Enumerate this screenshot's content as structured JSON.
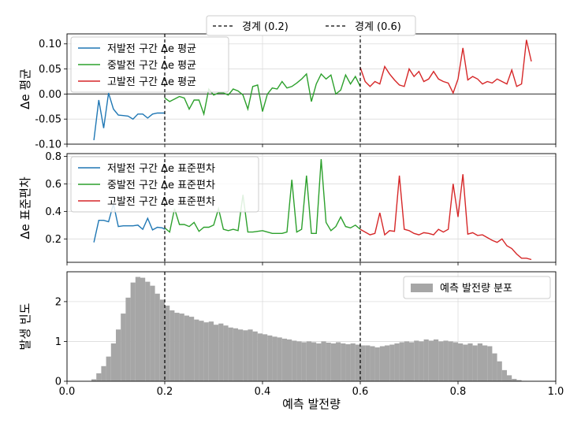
{
  "figure_legend": [
    {
      "label": "경계 (0.2)",
      "color": "#000000",
      "dash": true
    },
    {
      "label": "경계 (0.6)",
      "color": "#000000",
      "dash": true
    }
  ],
  "colors": {
    "low": "#1f77b4",
    "mid": "#2ca02c",
    "high": "#d62728",
    "hist": "#a6a6a6",
    "grid": "#dcdcdc"
  },
  "chart_data": [
    {
      "type": "line",
      "ylabel": "Δe 평균",
      "xlim": [
        0.0,
        1.0
      ],
      "ylim": [
        -0.1,
        0.12
      ],
      "yticks": [
        "0.10",
        "0.05",
        "0.00",
        "-0.05",
        "-0.10"
      ],
      "ytick_values": [
        0.1,
        0.05,
        0.0,
        -0.05,
        -0.1
      ],
      "hline": 0.0,
      "vlines": [
        0.2,
        0.6
      ],
      "legend_position": "upper-left",
      "series": [
        {
          "name": "저발전 구간 Δe 평균",
          "color_key": "low",
          "x": [
            0.055,
            0.065,
            0.075,
            0.085,
            0.095,
            0.105,
            0.115,
            0.125,
            0.135,
            0.145,
            0.155,
            0.165,
            0.175,
            0.185,
            0.195,
            0.2
          ],
          "y": [
            -0.092,
            -0.012,
            -0.068,
            0.002,
            -0.03,
            -0.042,
            -0.043,
            -0.044,
            -0.05,
            -0.04,
            -0.04,
            -0.048,
            -0.04,
            -0.038,
            -0.038,
            -0.038
          ]
        },
        {
          "name": "중발전 구간 Δe 평균",
          "color_key": "mid",
          "x": [
            0.2,
            0.21,
            0.22,
            0.23,
            0.24,
            0.25,
            0.26,
            0.27,
            0.28,
            0.29,
            0.3,
            0.31,
            0.32,
            0.33,
            0.34,
            0.35,
            0.36,
            0.37,
            0.38,
            0.39,
            0.4,
            0.41,
            0.42,
            0.43,
            0.44,
            0.45,
            0.46,
            0.47,
            0.48,
            0.49,
            0.5,
            0.51,
            0.52,
            0.53,
            0.54,
            0.55,
            0.56,
            0.57,
            0.58,
            0.59,
            0.6
          ],
          "y": [
            -0.008,
            -0.015,
            -0.01,
            -0.005,
            -0.008,
            -0.03,
            -0.012,
            -0.012,
            -0.04,
            0.01,
            -0.002,
            0.002,
            0.002,
            -0.002,
            0.01,
            0.006,
            -0.002,
            -0.03,
            0.015,
            0.018,
            -0.035,
            0.0,
            0.012,
            0.01,
            0.025,
            0.012,
            0.015,
            0.022,
            0.03,
            0.04,
            -0.015,
            0.02,
            0.04,
            0.03,
            0.038,
            0.0,
            0.008,
            0.038,
            0.02,
            0.035,
            0.015
          ]
        },
        {
          "name": "고발전 구간 Δe 평균",
          "color_key": "high",
          "x": [
            0.6,
            0.61,
            0.62,
            0.63,
            0.64,
            0.65,
            0.66,
            0.67,
            0.68,
            0.69,
            0.7,
            0.71,
            0.72,
            0.73,
            0.74,
            0.75,
            0.76,
            0.77,
            0.78,
            0.79,
            0.8,
            0.81,
            0.82,
            0.83,
            0.84,
            0.85,
            0.86,
            0.87,
            0.88,
            0.89,
            0.9,
            0.91,
            0.92,
            0.93,
            0.94,
            0.95
          ],
          "y": [
            0.053,
            0.025,
            0.015,
            0.025,
            0.02,
            0.055,
            0.04,
            0.028,
            0.018,
            0.015,
            0.05,
            0.035,
            0.045,
            0.025,
            0.03,
            0.045,
            0.03,
            0.025,
            0.022,
            0.002,
            0.03,
            0.092,
            0.028,
            0.035,
            0.03,
            0.02,
            0.025,
            0.022,
            0.03,
            0.025,
            0.02,
            0.048,
            0.015,
            0.02,
            0.108,
            0.065
          ]
        }
      ]
    },
    {
      "type": "line",
      "ylabel": "Δe 표준편차",
      "xlim": [
        0.0,
        1.0
      ],
      "ylim": [
        0.03,
        0.82
      ],
      "yticks": [
        "0.8",
        "0.6",
        "0.4",
        "0.2"
      ],
      "ytick_values": [
        0.8,
        0.6,
        0.4,
        0.2
      ],
      "vlines": [
        0.2,
        0.6
      ],
      "legend_position": "upper-left",
      "series": [
        {
          "name": "저발전 구간 Δe 표준편차",
          "color_key": "low",
          "x": [
            0.055,
            0.065,
            0.075,
            0.085,
            0.095,
            0.105,
            0.115,
            0.125,
            0.135,
            0.145,
            0.155,
            0.165,
            0.175,
            0.185,
            0.195,
            0.2
          ],
          "y": [
            0.175,
            0.335,
            0.335,
            0.325,
            0.455,
            0.29,
            0.295,
            0.295,
            0.295,
            0.3,
            0.27,
            0.35,
            0.265,
            0.285,
            0.28,
            0.27
          ]
        },
        {
          "name": "중발전 구간 Δe 표준편차",
          "color_key": "mid",
          "x": [
            0.2,
            0.21,
            0.22,
            0.23,
            0.24,
            0.25,
            0.26,
            0.27,
            0.28,
            0.29,
            0.3,
            0.31,
            0.32,
            0.33,
            0.34,
            0.35,
            0.36,
            0.37,
            0.38,
            0.39,
            0.4,
            0.41,
            0.42,
            0.43,
            0.44,
            0.45,
            0.46,
            0.47,
            0.48,
            0.49,
            0.5,
            0.51,
            0.52,
            0.53,
            0.54,
            0.55,
            0.56,
            0.57,
            0.58,
            0.59,
            0.6
          ],
          "y": [
            0.28,
            0.25,
            0.42,
            0.305,
            0.305,
            0.29,
            0.32,
            0.255,
            0.285,
            0.285,
            0.3,
            0.42,
            0.27,
            0.26,
            0.27,
            0.26,
            0.52,
            0.25,
            0.25,
            0.255,
            0.26,
            0.25,
            0.24,
            0.24,
            0.24,
            0.25,
            0.63,
            0.25,
            0.27,
            0.66,
            0.24,
            0.24,
            0.78,
            0.32,
            0.26,
            0.29,
            0.36,
            0.29,
            0.28,
            0.3,
            0.27
          ]
        },
        {
          "name": "고발전 구간 Δe 표준편차",
          "color_key": "high",
          "x": [
            0.6,
            0.61,
            0.62,
            0.63,
            0.64,
            0.65,
            0.66,
            0.67,
            0.68,
            0.69,
            0.7,
            0.71,
            0.72,
            0.73,
            0.74,
            0.75,
            0.76,
            0.77,
            0.78,
            0.79,
            0.8,
            0.81,
            0.82,
            0.83,
            0.84,
            0.85,
            0.86,
            0.87,
            0.88,
            0.89,
            0.9,
            0.91,
            0.92,
            0.93,
            0.94,
            0.95
          ],
          "y": [
            0.27,
            0.25,
            0.23,
            0.24,
            0.39,
            0.23,
            0.26,
            0.255,
            0.66,
            0.27,
            0.26,
            0.24,
            0.23,
            0.245,
            0.24,
            0.23,
            0.27,
            0.25,
            0.27,
            0.6,
            0.36,
            0.67,
            0.235,
            0.245,
            0.225,
            0.23,
            0.21,
            0.19,
            0.175,
            0.2,
            0.15,
            0.13,
            0.09,
            0.06,
            0.06,
            0.05
          ]
        }
      ]
    },
    {
      "type": "bar",
      "xlabel": "예측 발전량",
      "ylabel": "발생 빈도",
      "xlim": [
        0.0,
        1.0
      ],
      "ylim": [
        0,
        2.75
      ],
      "xticks": [
        "0.0",
        "0.2",
        "0.4",
        "0.6",
        "0.8",
        "1.0"
      ],
      "xtick_values": [
        0.0,
        0.2,
        0.4,
        0.6,
        0.8,
        1.0
      ],
      "yticks": [
        "2",
        "1",
        "0"
      ],
      "ytick_values": [
        2,
        1,
        0
      ],
      "vlines": [
        0.2,
        0.6
      ],
      "legend_position": "upper-right",
      "series_name": "예측 발전량 분포",
      "bin_start": 0.05,
      "bin_width": 0.01,
      "values": [
        0.05,
        0.2,
        0.38,
        0.62,
        0.95,
        1.3,
        1.7,
        2.1,
        2.48,
        2.62,
        2.6,
        2.5,
        2.4,
        2.2,
        2.05,
        1.9,
        1.78,
        1.72,
        1.7,
        1.65,
        1.62,
        1.55,
        1.52,
        1.48,
        1.5,
        1.42,
        1.45,
        1.4,
        1.35,
        1.33,
        1.3,
        1.28,
        1.3,
        1.25,
        1.2,
        1.18,
        1.15,
        1.12,
        1.1,
        1.07,
        1.05,
        1.02,
        1.0,
        0.98,
        1.0,
        0.98,
        0.95,
        1.0,
        0.97,
        0.95,
        0.98,
        0.95,
        0.93,
        0.95,
        0.92,
        0.9,
        0.9,
        0.88,
        0.85,
        0.88,
        0.9,
        0.92,
        0.95,
        0.98,
        1.0,
        0.98,
        1.02,
        1.0,
        1.05,
        1.02,
        1.05,
        1.0,
        1.02,
        1.0,
        0.98,
        0.95,
        0.92,
        0.95,
        0.9,
        0.95,
        0.9,
        0.88,
        0.7,
        0.5,
        0.28,
        0.15,
        0.06,
        0.03,
        0.01,
        0.0
      ]
    }
  ]
}
